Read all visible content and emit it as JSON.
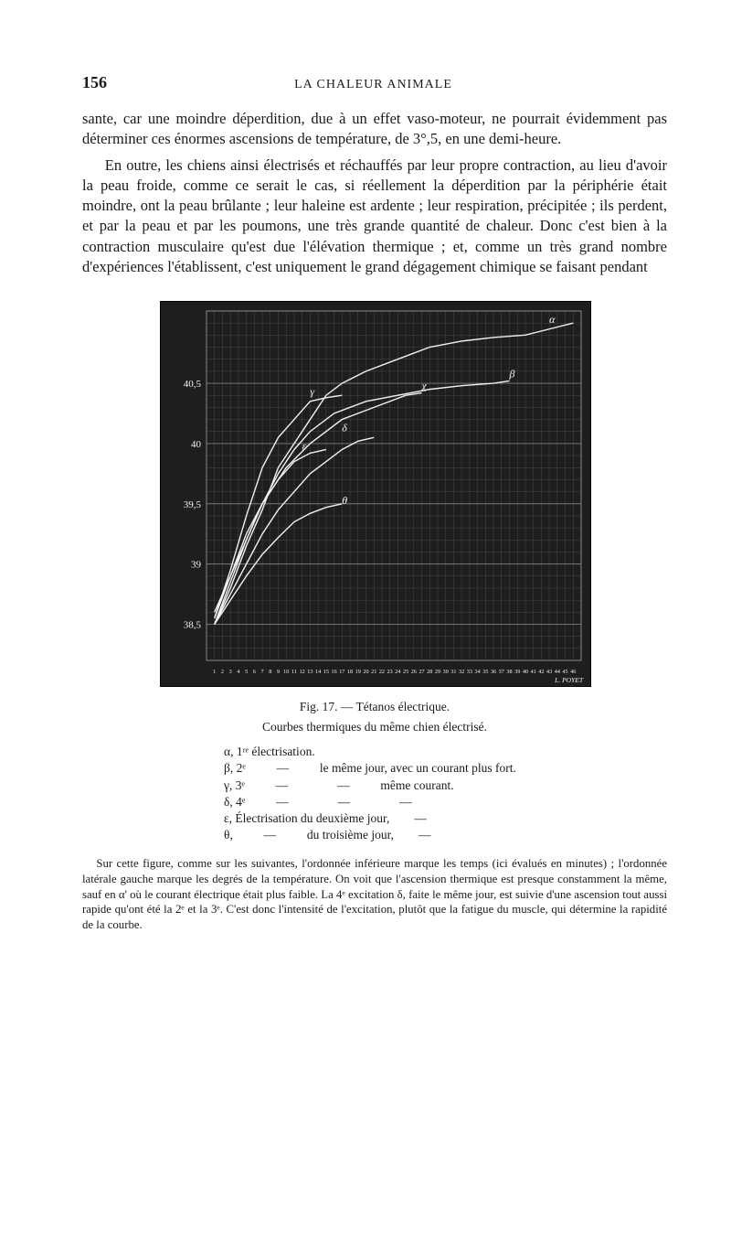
{
  "page_number": "156",
  "running_title": "LA CHALEUR ANIMALE",
  "paragraph_1": "sante, car une moindre déperdition, due à un effet vaso-moteur, ne pourrait évidemment pas déterminer ces énormes ascensions de température, de 3°,5, en une demi-heure.",
  "paragraph_2": "En outre, les chiens ainsi électrisés et réchauffés par leur propre contraction, au lieu d'avoir la peau froide, comme ce serait le cas, si réellement la déperdition par la périphérie était moindre, ont la peau brûlante ; leur haleine est ardente ; leur respiration, précipitée ; ils perdent, et par la peau et par les poumons, une très grande quantité de chaleur. Donc c'est bien à la contraction musculaire qu'est due l'élévation thermique ; et, comme un très grand nombre d'expériences l'établissent, c'est uniquement le grand dégagement chimique se faisant pendant",
  "figure": {
    "caption": "Fig. 17. — Tétanos électrique.",
    "subcaption": "Courbes thermiques du même chien électrisé.",
    "chart": {
      "type": "line",
      "background_color": "#1e1e1e",
      "grid_color": "#888888",
      "line_color": "#f2f2f2",
      "axis_label_color": "#f2f2f2",
      "y_ticks": [
        "38,5",
        "39",
        "39,5",
        "40",
        "40,5"
      ],
      "y_values": [
        38.5,
        39,
        39.5,
        40,
        40.5
      ],
      "x_tick_labels": [
        "1",
        "2",
        "3",
        "4",
        "5",
        "6",
        "7",
        "8",
        "9",
        "10",
        "11",
        "12",
        "13",
        "14",
        "15",
        "16",
        "17",
        "18",
        "19",
        "20",
        "21",
        "22",
        "23",
        "24",
        "25",
        "26",
        "27",
        "28",
        "29",
        "30",
        "31",
        "32",
        "33",
        "34",
        "35",
        "36",
        "37",
        "38",
        "39",
        "40",
        "41",
        "42",
        "43",
        "44",
        "45",
        "46"
      ],
      "x_bottom_caption": "L. POYET",
      "ylim": [
        38.2,
        41.1
      ],
      "xlim": [
        0,
        47
      ],
      "series": [
        {
          "label": "α",
          "label_x": 43,
          "label_y": 41.0,
          "points": [
            [
              1,
              38.5
            ],
            [
              3,
              38.8
            ],
            [
              5,
              39.15
            ],
            [
              7,
              39.45
            ],
            [
              9,
              39.8
            ],
            [
              11,
              40.0
            ],
            [
              13,
              40.2
            ],
            [
              15,
              40.4
            ],
            [
              17,
              40.5
            ],
            [
              20,
              40.6
            ],
            [
              24,
              40.7
            ],
            [
              28,
              40.8
            ],
            [
              32,
              40.85
            ],
            [
              36,
              40.88
            ],
            [
              40,
              40.9
            ],
            [
              43,
              40.95
            ],
            [
              46,
              41.0
            ]
          ]
        },
        {
          "label": "β",
          "label_x": 38,
          "label_y": 40.55,
          "points": [
            [
              1,
              38.6
            ],
            [
              3,
              38.9
            ],
            [
              5,
              39.2
            ],
            [
              7,
              39.5
            ],
            [
              9,
              39.75
            ],
            [
              11,
              39.95
            ],
            [
              13,
              40.1
            ],
            [
              16,
              40.25
            ],
            [
              20,
              40.35
            ],
            [
              24,
              40.4
            ],
            [
              28,
              40.45
            ],
            [
              32,
              40.48
            ],
            [
              36,
              40.5
            ],
            [
              38,
              40.52
            ]
          ]
        },
        {
          "label": "γ",
          "label_x": 13,
          "label_y": 40.4,
          "points": [
            [
              1,
              38.55
            ],
            [
              3,
              38.95
            ],
            [
              5,
              39.4
            ],
            [
              7,
              39.8
            ],
            [
              9,
              40.05
            ],
            [
              11,
              40.2
            ],
            [
              13,
              40.35
            ],
            [
              15,
              40.38
            ],
            [
              17,
              40.4
            ]
          ]
        },
        {
          "label": "χ",
          "label_x": 27,
          "label_y": 40.45,
          "points": [
            [
              1,
              38.5
            ],
            [
              3,
              38.85
            ],
            [
              5,
              39.2
            ],
            [
              7,
              39.5
            ],
            [
              10,
              39.8
            ],
            [
              13,
              40.0
            ],
            [
              17,
              40.2
            ],
            [
              21,
              40.3
            ],
            [
              25,
              40.4
            ],
            [
              27,
              40.42
            ]
          ]
        },
        {
          "label": "ε",
          "label_x": 12,
          "label_y": 39.95,
          "points": [
            [
              1,
              38.55
            ],
            [
              3,
              38.9
            ],
            [
              5,
              39.25
            ],
            [
              7,
              39.5
            ],
            [
              9,
              39.7
            ],
            [
              11,
              39.85
            ],
            [
              13,
              39.92
            ],
            [
              15,
              39.95
            ]
          ]
        },
        {
          "label": "δ",
          "label_x": 17,
          "label_y": 40.1,
          "points": [
            [
              1,
              38.5
            ],
            [
              3,
              38.75
            ],
            [
              5,
              39.0
            ],
            [
              7,
              39.25
            ],
            [
              9,
              39.45
            ],
            [
              11,
              39.6
            ],
            [
              13,
              39.75
            ],
            [
              15,
              39.85
            ],
            [
              17,
              39.95
            ],
            [
              19,
              40.02
            ],
            [
              21,
              40.05
            ]
          ]
        },
        {
          "label": "θ",
          "label_x": 17,
          "label_y": 39.5,
          "points": [
            [
              1,
              38.5
            ],
            [
              3,
              38.7
            ],
            [
              5,
              38.9
            ],
            [
              7,
              39.08
            ],
            [
              9,
              39.22
            ],
            [
              11,
              39.35
            ],
            [
              13,
              39.42
            ],
            [
              15,
              39.47
            ],
            [
              17,
              39.5
            ]
          ]
        }
      ]
    },
    "legend": [
      "α, 1ʳᵉ électrisation.",
      "β, 2ᵉ          —          le même jour, avec un courant plus fort.",
      "γ, 3ᵉ          —                —          même courant.",
      "δ, 4ᵉ          —                —                —",
      "ε, Électrisation du deuxième jour,        —",
      "θ,          —          du troisième jour,        —"
    ]
  },
  "footnote": "Sur cette figure, comme sur les suivantes, l'ordonnée inférieure marque les temps (ici évalués en minutes) ; l'ordonnée latérale gauche marque les degrés de la température. On voit que l'ascension thermique est presque constamment la même, sauf en α' où le courant électrique était plus faible. La 4ᵉ excitation δ, faite le même jour, est suivie d'une ascension tout aussi rapide qu'ont été la 2ᵉ et la 3ᵉ. C'est donc l'intensité de l'excitation, plutôt que la fatigue du muscle, qui détermine la rapidité de la courbe."
}
